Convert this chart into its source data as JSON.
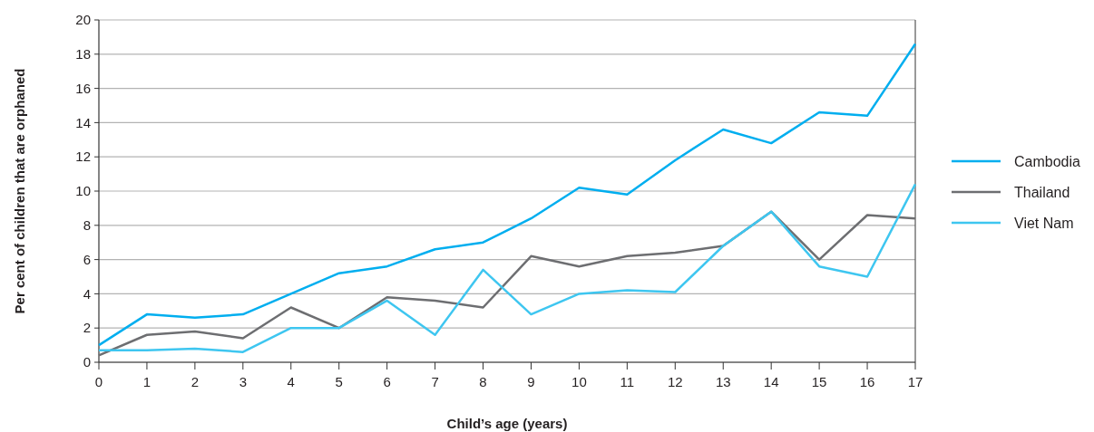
{
  "chart_data": {
    "type": "line",
    "xlabel": "Child’s age (years)",
    "ylabel": "Per cent of children that are orphaned",
    "x": [
      0,
      1,
      2,
      3,
      4,
      5,
      6,
      7,
      8,
      9,
      10,
      11,
      12,
      13,
      14,
      15,
      16,
      17
    ],
    "xlim": [
      0,
      17
    ],
    "xticks": [
      0,
      1,
      2,
      3,
      4,
      5,
      6,
      7,
      8,
      9,
      10,
      11,
      12,
      13,
      14,
      15,
      16,
      17
    ],
    "ylim": [
      0,
      20
    ],
    "yticks": [
      0,
      2,
      4,
      6,
      8,
      10,
      12,
      14,
      16,
      18,
      20
    ],
    "grid": "y",
    "legend": "right",
    "marker": "none",
    "line_style": "solid",
    "series": [
      {
        "name": "Cambodia",
        "color": "#00aeef",
        "values": [
          1.0,
          2.8,
          2.6,
          2.8,
          4.0,
          5.2,
          5.6,
          6.6,
          7.0,
          8.4,
          10.2,
          9.8,
          11.8,
          13.6,
          12.8,
          14.6,
          14.4,
          18.6
        ]
      },
      {
        "name": "Thailand",
        "color": "#6d6e71",
        "values": [
          0.4,
          1.6,
          1.8,
          1.4,
          3.2,
          2.0,
          3.8,
          3.6,
          3.2,
          6.2,
          5.6,
          6.2,
          6.4,
          6.8,
          8.8,
          6.0,
          8.6,
          8.4
        ]
      },
      {
        "name": "Viet Nam",
        "color": "#3ec6f0",
        "values": [
          0.7,
          0.7,
          0.8,
          0.6,
          2.0,
          2.0,
          3.6,
          1.6,
          5.4,
          2.8,
          4.0,
          4.2,
          4.1,
          6.8,
          8.8,
          5.6,
          5.0,
          10.4
        ]
      }
    ]
  }
}
